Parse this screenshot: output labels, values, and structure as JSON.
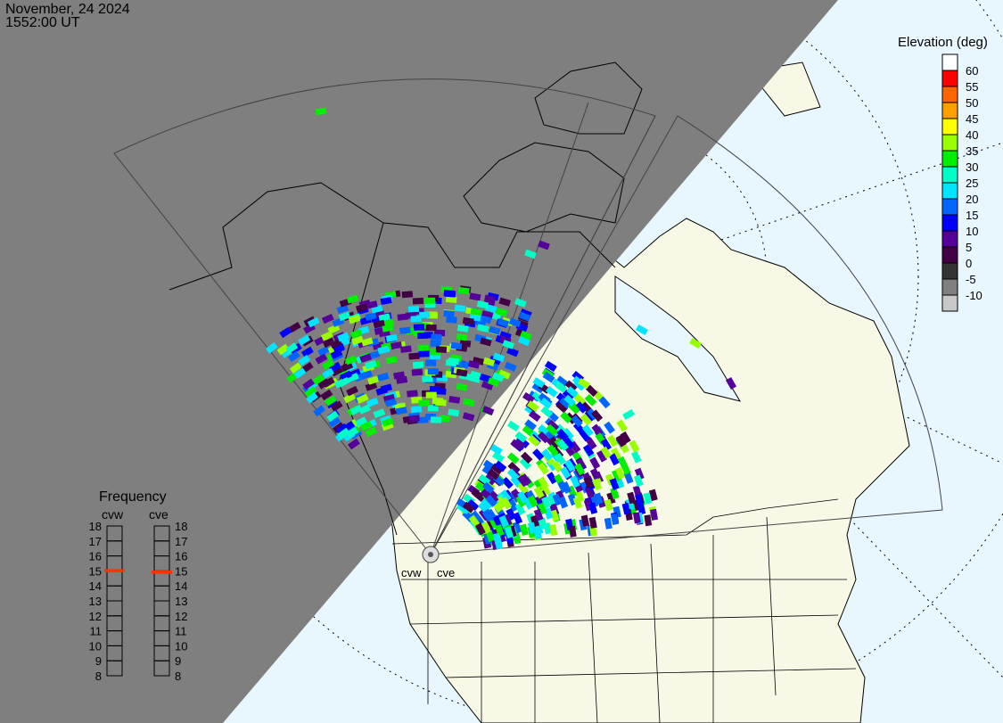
{
  "header": {
    "date": "November, 24 2024",
    "time": "1552:00 UT"
  },
  "colors": {
    "night": "#7f7f7f",
    "day_ocean": "#e8f6fe",
    "land": "#f8f8e6",
    "freq_marker": "#ff3300"
  },
  "elevation_legend": {
    "title": "Elevation (deg)",
    "bins": [
      {
        "label": "60",
        "color": "#ffffff"
      },
      {
        "label": "55",
        "color": "#ff0000"
      },
      {
        "label": "50",
        "color": "#ff6600"
      },
      {
        "label": "45",
        "color": "#ffa000"
      },
      {
        "label": "40",
        "color": "#ffff00"
      },
      {
        "label": "35",
        "color": "#99ff00"
      },
      {
        "label": "30",
        "color": "#00ee00"
      },
      {
        "label": "25",
        "color": "#00ffc8"
      },
      {
        "label": "20",
        "color": "#00e4ff"
      },
      {
        "label": "15",
        "color": "#0066ff"
      },
      {
        "label": "10",
        "color": "#0000ff"
      },
      {
        "label": "5",
        "color": "#550099"
      },
      {
        "label": "0",
        "color": "#440044"
      },
      {
        "label": "-5",
        "color": "#333333"
      },
      {
        "label": "-10",
        "color": "#808080"
      },
      {
        "label": "",
        "color": "#c8c8c8"
      }
    ]
  },
  "frequency": {
    "title": "Frequency",
    "unit_range": [
      8,
      18
    ],
    "ticks": [
      "18",
      "17",
      "16",
      "15",
      "14",
      "13",
      "12",
      "11",
      "10",
      "9",
      "8"
    ],
    "radars": [
      {
        "name": "cvw",
        "value": 15.0
      },
      {
        "name": "cve",
        "value": 14.9
      }
    ]
  },
  "stations": [
    {
      "name": "cvw"
    },
    {
      "name": "cve"
    }
  ]
}
